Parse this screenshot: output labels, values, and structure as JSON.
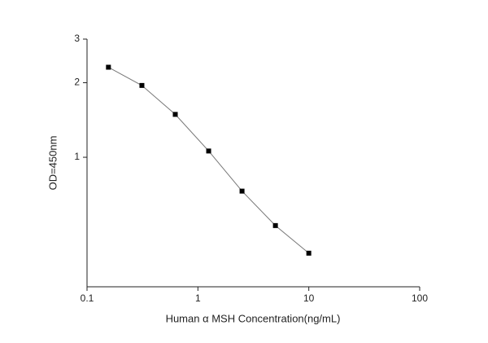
{
  "chart_data": {
    "type": "line",
    "x_label": "Human α MSH Concentration(ng/mL)",
    "y_label": "OD=450nm",
    "x": [
      0.156,
      0.3125,
      0.625,
      1.25,
      2.5,
      5,
      10
    ],
    "series": [
      {
        "color": "#000000",
        "line_color": "#777777",
        "values": [
          2.31,
          1.95,
          1.49,
          1.06,
          0.73,
          0.53,
          0.41
        ]
      }
    ],
    "xlim": [
      0.1,
      100
    ],
    "xticks": [
      0.1,
      1,
      10,
      100
    ],
    "xscale": "log",
    "ylim": [
      0.3,
      3
    ],
    "yticks": [
      1,
      2,
      3
    ],
    "yscale": "log",
    "grid": false
  }
}
